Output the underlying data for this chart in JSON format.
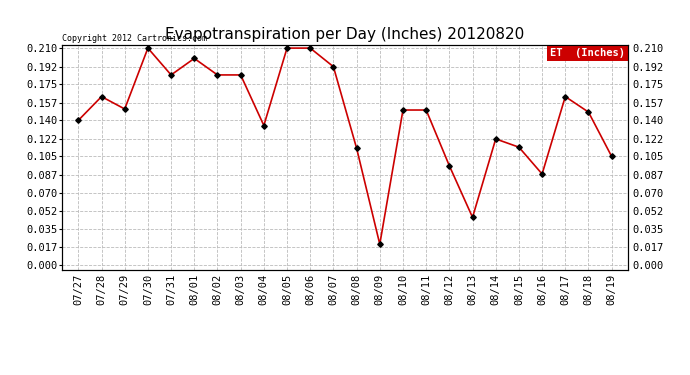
{
  "title": "Evapotranspiration per Day (Inches) 20120820",
  "copyright_text": "Copyright 2012 Cartronics.com",
  "legend_label": "ET  (Inches)",
  "legend_bg": "#cc0000",
  "legend_text_color": "#ffffff",
  "x_labels": [
    "07/27",
    "07/28",
    "07/29",
    "07/30",
    "07/31",
    "08/01",
    "08/02",
    "08/03",
    "08/04",
    "08/05",
    "08/06",
    "08/07",
    "08/08",
    "08/09",
    "08/10",
    "08/11",
    "08/12",
    "08/13",
    "08/14",
    "08/15",
    "08/16",
    "08/17",
    "08/18",
    "08/19"
  ],
  "y_values": [
    0.14,
    0.163,
    0.151,
    0.21,
    0.184,
    0.2,
    0.184,
    0.184,
    0.135,
    0.21,
    0.21,
    0.192,
    0.113,
    0.02,
    0.15,
    0.15,
    0.096,
    0.046,
    0.122,
    0.114,
    0.088,
    0.163,
    0.148,
    0.105
  ],
  "line_color": "#cc0000",
  "marker_color": "#000000",
  "bg_color": "#ffffff",
  "plot_bg_color": "#ffffff",
  "grid_color": "#bbbbbb",
  "title_fontsize": 11,
  "tick_fontsize": 7.5,
  "copyright_fontsize": 6,
  "ylim_min": 0.0,
  "ylim_max": 0.21,
  "yticks": [
    0.0,
    0.017,
    0.035,
    0.052,
    0.07,
    0.087,
    0.105,
    0.122,
    0.14,
    0.157,
    0.175,
    0.192,
    0.21
  ]
}
